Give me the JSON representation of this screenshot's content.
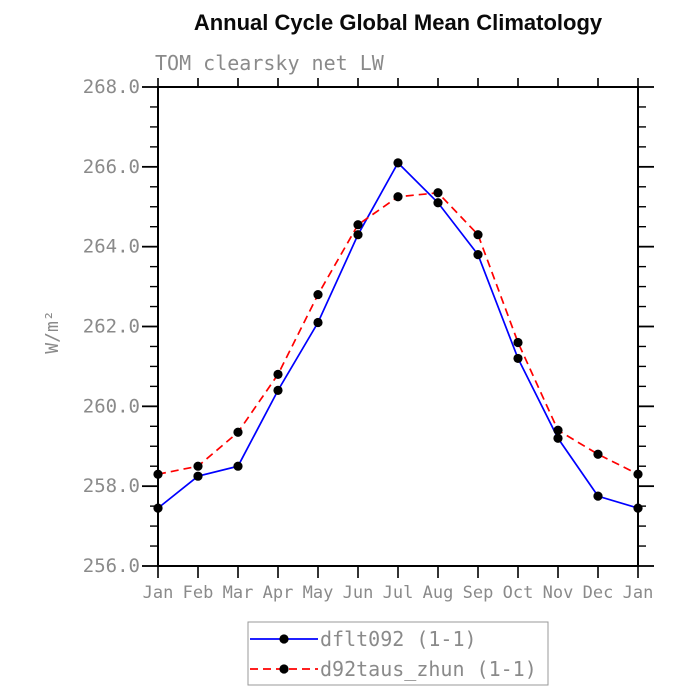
{
  "title": "Annual Cycle Global Mean Climatology",
  "subtitle": "TOM clearsky net LW",
  "ylabel": "W/m²",
  "colors": {
    "axis": "#000000",
    "label_gray": "#8a8a8a",
    "marker": "#000000",
    "series1_blue": "#0000ff",
    "series2_red": "#ff0000",
    "legend_border": "#999999"
  },
  "chart_data": {
    "type": "line",
    "title": "Annual Cycle Global Mean Climatology",
    "subtitle": "TOM clearsky net LW",
    "ylabel": "W/m²",
    "xlabel": "",
    "categories": [
      "Jan",
      "Feb",
      "Mar",
      "Apr",
      "May",
      "Jun",
      "Jul",
      "Aug",
      "Sep",
      "Oct",
      "Nov",
      "Dec",
      "Jan"
    ],
    "series": [
      {
        "name": "dflt092 (1-1)",
        "color": "#0000ff",
        "style": "solid",
        "marker": "circle",
        "marker_color": "#000000",
        "values": [
          257.45,
          258.25,
          258.5,
          260.4,
          262.1,
          264.3,
          266.1,
          265.1,
          263.8,
          261.2,
          259.2,
          257.75,
          257.45
        ]
      },
      {
        "name": "d92taus_zhun (1-1)",
        "color": "#ff0000",
        "style": "dashed",
        "marker": "circle",
        "marker_color": "#000000",
        "values": [
          258.3,
          258.5,
          259.35,
          260.8,
          262.8,
          264.55,
          265.25,
          265.35,
          264.3,
          261.6,
          259.4,
          258.8,
          258.3
        ]
      }
    ],
    "ylim": [
      256.0,
      268.0
    ],
    "yticks": [
      256.0,
      258.0,
      260.0,
      262.0,
      264.0,
      266.0,
      268.0
    ],
    "ytick_labels": [
      "256.0",
      "258.0",
      "260.0",
      "262.0",
      "264.0",
      "266.0",
      "268.0"
    ],
    "y_minor_step": 0.5,
    "grid": false,
    "legend_position": "bottom"
  }
}
